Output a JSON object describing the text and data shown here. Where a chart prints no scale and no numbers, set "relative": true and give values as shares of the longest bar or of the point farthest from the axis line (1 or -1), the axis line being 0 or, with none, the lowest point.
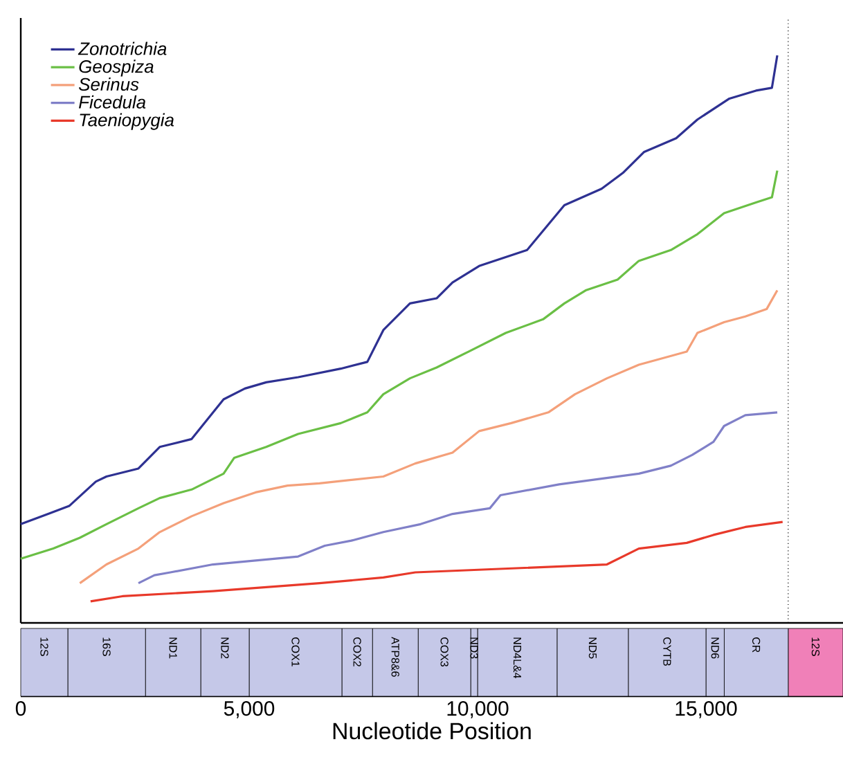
{
  "chart_data": [
    {
      "type": "line",
      "relative": true,
      "xlim": [
        0,
        18000
      ],
      "tick_labels": false,
      "legend": "top left",
      "marker": "none",
      "line_style": "solid",
      "series": [
        {
          "name": "Zonotrichia",
          "color": "#2e3192",
          "x": [
            0,
            600,
            1060,
            1643,
            1876,
            2576,
            3042,
            3741,
            4440,
            4906,
            5373,
            6072,
            7005,
            7587,
            7937,
            8520,
            9103,
            9452,
            10035,
            11084,
            11900,
            12715,
            13182,
            13648,
            14347,
            14813,
            15513,
            16095,
            16444,
            16561
          ],
          "values": [
            0.174,
            0.192,
            0.206,
            0.249,
            0.258,
            0.272,
            0.31,
            0.324,
            0.394,
            0.413,
            0.424,
            0.433,
            0.448,
            0.46,
            0.516,
            0.563,
            0.572,
            0.6,
            0.629,
            0.657,
            0.736,
            0.765,
            0.793,
            0.83,
            0.854,
            0.887,
            0.924,
            0.938,
            0.943,
            1
          ]
        },
        {
          "name": "Geospiza",
          "color": "#6abf45",
          "x": [
            0,
            711,
            1293,
            1876,
            2576,
            3042,
            3741,
            4440,
            4674,
            5373,
            6072,
            7005,
            7587,
            7937,
            8520,
            9103,
            9802,
            10618,
            11434,
            11900,
            12366,
            13065,
            13531,
            14231,
            14813,
            15397,
            16095,
            16444,
            16561
          ],
          "values": [
            0.113,
            0.131,
            0.15,
            0.174,
            0.202,
            0.22,
            0.235,
            0.263,
            0.291,
            0.31,
            0.333,
            0.352,
            0.371,
            0.403,
            0.431,
            0.45,
            0.478,
            0.511,
            0.535,
            0.563,
            0.586,
            0.605,
            0.638,
            0.657,
            0.685,
            0.722,
            0.741,
            0.75,
            0.797
          ]
        },
        {
          "name": "Serinus",
          "color": "#f4a07a",
          "x": [
            1293,
            1876,
            2576,
            3042,
            3741,
            4440,
            5140,
            5839,
            6538,
            7937,
            8636,
            9452,
            10035,
            10735,
            11550,
            12133,
            12832,
            13531,
            14580,
            14813,
            15397,
            15862,
            16328,
            16561
          ],
          "values": [
            0.07,
            0.103,
            0.131,
            0.16,
            0.188,
            0.211,
            0.23,
            0.242,
            0.246,
            0.258,
            0.281,
            0.3,
            0.338,
            0.352,
            0.371,
            0.403,
            0.431,
            0.455,
            0.478,
            0.511,
            0.53,
            0.54,
            0.553,
            0.586
          ]
        },
        {
          "name": "Ficedula",
          "color": "#8080c8",
          "x": [
            2576,
            2925,
            3275,
            4207,
            6072,
            6655,
            7238,
            7937,
            8753,
            9452,
            10269,
            10502,
            11784,
            13531,
            14231,
            14697,
            15164,
            15397,
            15862,
            16561
          ],
          "values": [
            0.07,
            0.084,
            0.089,
            0.103,
            0.117,
            0.136,
            0.145,
            0.16,
            0.174,
            0.192,
            0.202,
            0.225,
            0.244,
            0.263,
            0.277,
            0.296,
            0.319,
            0.347,
            0.366,
            0.371
          ]
        },
        {
          "name": "Taeniopygia",
          "color": "#e8392a",
          "x": [
            1528,
            2226,
            4207,
            6538,
            7937,
            8636,
            12832,
            13531,
            14580,
            15164,
            15862,
            16678
          ],
          "values": [
            0.038,
            0.047,
            0.056,
            0.07,
            0.08,
            0.089,
            0.103,
            0.131,
            0.141,
            0.155,
            0.169,
            0.178
          ]
        }
      ],
      "ref_lines": [
        {
          "axis": "x",
          "value": 16800,
          "line_style": "dotted",
          "color": "#000000"
        }
      ]
    },
    {
      "type": "bar",
      "orientation": "horizontal",
      "stacked": true,
      "categories": [
        null
      ],
      "xlabel": "Nucleotide Position",
      "xlim": [
        0,
        18000
      ],
      "xticks": [
        0,
        {
          "value": 5000,
          "label": "5,000"
        },
        {
          "value": 10000,
          "label": "10,000"
        },
        {
          "value": 15000,
          "label": "15,000"
        }
      ],
      "tick_labels": "x",
      "legend": false,
      "series": [
        {
          "name": "12S",
          "color": "#c5c8e8",
          "values": [
            1030
          ]
        },
        {
          "name": "16S",
          "color": "#c5c8e8",
          "values": [
            1700
          ]
        },
        {
          "name": "ND1",
          "color": "#c5c8e8",
          "values": [
            1210
          ]
        },
        {
          "name": "ND2",
          "color": "#c5c8e8",
          "values": [
            1060
          ]
        },
        {
          "name": "COX1",
          "color": "#c5c8e8",
          "values": [
            2030
          ]
        },
        {
          "name": "COX2",
          "color": "#c5c8e8",
          "values": [
            670
          ]
        },
        {
          "name": "ATP8&6",
          "color": "#c5c8e8",
          "values": [
            1000
          ]
        },
        {
          "name": "COX3",
          "color": "#c5c8e8",
          "values": [
            1150
          ]
        },
        {
          "name": "ND3",
          "color": "#c5c8e8",
          "values": [
            150
          ]
        },
        {
          "name": "ND4L&4",
          "color": "#c5c8e8",
          "values": [
            1740
          ]
        },
        {
          "name": "ND5",
          "color": "#c5c8e8",
          "values": [
            1560
          ]
        },
        {
          "name": "CYTB",
          "color": "#c5c8e8",
          "values": [
            1700
          ]
        },
        {
          "name": "ND6",
          "color": "#c5c8e8",
          "values": [
            400
          ]
        },
        {
          "name": "CR",
          "color": "#c5c8e8",
          "values": [
            1400
          ]
        },
        {
          "name": "12S",
          "color": "#f080b8",
          "values": [
            1200
          ]
        }
      ]
    }
  ]
}
